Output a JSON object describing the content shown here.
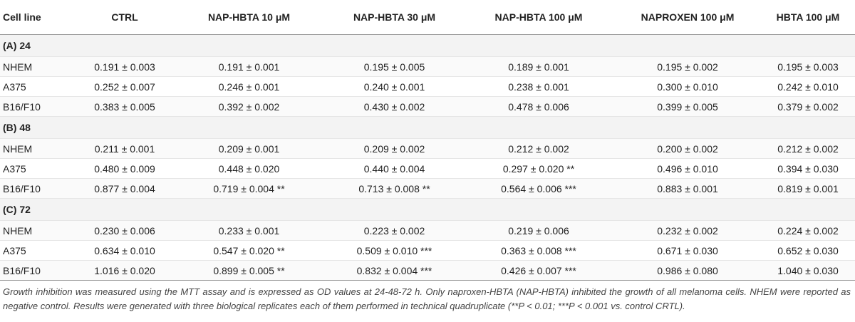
{
  "table": {
    "headers": [
      "Cell line",
      "CTRL",
      "NAP-HBTA 10 μM",
      "NAP-HBTA 30 μM",
      "NAP-HBTA 100 μM",
      "NAPROXEN 100 μM",
      "HBTA 100 μM"
    ],
    "groups": [
      {
        "label": "(A) 24",
        "rows": [
          {
            "cell_line": "NHEM",
            "values": [
              "0.191 ± 0.003",
              "0.191 ± 0.001",
              "0.195 ± 0.005",
              "0.189 ± 0.001",
              "0.195 ± 0.002",
              "0.195 ± 0.003"
            ]
          },
          {
            "cell_line": "A375",
            "values": [
              "0.252 ± 0.007",
              "0.246 ± 0.001",
              "0.240 ± 0.001",
              "0.238 ± 0.001",
              "0.300 ± 0.010",
              "0.242 ± 0.010"
            ]
          },
          {
            "cell_line": "B16/F10",
            "values": [
              "0.383 ± 0.005",
              "0.392 ± 0.002",
              "0.430 ± 0.002",
              "0.478 ± 0.006",
              "0.399 ± 0.005",
              "0.379 ± 0.002"
            ]
          }
        ]
      },
      {
        "label": "(B) 48",
        "rows": [
          {
            "cell_line": "NHEM",
            "values": [
              "0.211 ± 0.001",
              "0.209 ± 0.001",
              "0.209 ± 0.002",
              "0.212 ± 0.002",
              "0.200 ± 0.002",
              "0.212 ± 0.002"
            ]
          },
          {
            "cell_line": "A375",
            "values": [
              "0.480 ± 0.009",
              "0.448 ± 0.020",
              "0.440 ± 0.004",
              "0.297 ± 0.020 **",
              "0.496 ± 0.010",
              "0.394 ± 0.030"
            ]
          },
          {
            "cell_line": "B16/F10",
            "values": [
              "0.877 ± 0.004",
              "0.719 ± 0.004 **",
              "0.713 ± 0.008 **",
              "0.564 ± 0.006 ***",
              "0.883 ± 0.001",
              "0.819 ± 0.001"
            ]
          }
        ]
      },
      {
        "label": "(C) 72",
        "rows": [
          {
            "cell_line": "NHEM",
            "values": [
              "0.230 ± 0.006",
              "0.233 ± 0.001",
              "0.223 ± 0.002",
              "0.219 ± 0.006",
              "0.232 ± 0.002",
              "0.224 ± 0.002"
            ]
          },
          {
            "cell_line": "A375",
            "values": [
              "0.634 ± 0.010",
              "0.547 ± 0.020 **",
              "0.509 ± 0.010 ***",
              "0.363 ± 0.008 ***",
              "0.671 ± 0.030",
              "0.652 ± 0.030"
            ]
          },
          {
            "cell_line": "B16/F10",
            "values": [
              "1.016 ± 0.020",
              "0.899 ± 0.005 **",
              "0.832 ± 0.004 ***",
              "0.426 ± 0.007 ***",
              "0.986 ± 0.080",
              "1.040 ± 0.030"
            ]
          }
        ]
      }
    ]
  },
  "footnote": "Growth inhibition was measured using the MTT assay and is expressed as OD values at 24-48-72 h. Only naproxen-HBTA (NAP-HBTA) inhibited the growth of all melanoma cells. NHEM were reported as negative control. Results were generated with three biological replicates each of them performed in technical quadruplicate (**P < 0.01; ***P < 0.001 vs. control CRTL)."
}
